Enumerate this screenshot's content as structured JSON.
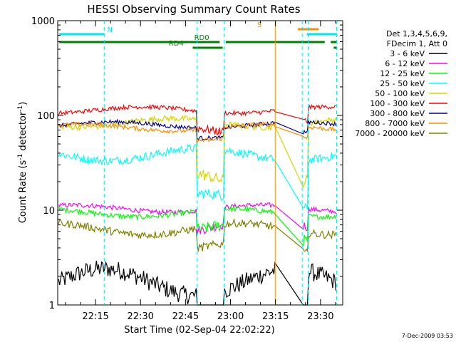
{
  "chart_data": {
    "type": "line",
    "title": "HESSI Observing Summary Count Rates",
    "xlabel": "Start Time (02-Sep-04 22:02:22)",
    "ylabel_main": "Count Rate (s",
    "ylabel_sup1": "-1",
    "ylabel_mid": " detector",
    "ylabel_sup2": "-1",
    "ylabel_end": ")",
    "yscale": "log",
    "ylim": [
      1,
      1000
    ],
    "xlim_minutes": [
      0,
      95
    ],
    "xtick_labels": [
      "22:15",
      "22:30",
      "22:45",
      "23:00",
      "23:15",
      "23:30"
    ],
    "xtick_minutes": [
      12.6,
      27.6,
      42.6,
      57.6,
      72.6,
      87.6
    ],
    "ytick_labels": [
      "1",
      "10",
      "100",
      "1000"
    ],
    "ytick_values": [
      1,
      10,
      100,
      1000
    ],
    "grid": false,
    "legend_position": "right",
    "legend_header": [
      "Det 1,3,4,5,6,9,",
      "FDecim 1, Att 0"
    ],
    "footer": "7-Dec-2009 03:53",
    "flags": [
      {
        "label": "N",
        "color": "#00e5ee",
        "segments": [
          [
            0.5,
            15.5
          ],
          [
            83,
            93
          ]
        ]
      },
      {
        "label": "S",
        "color": "#ff8c00",
        "segments": [
          [
            80,
            87
          ]
        ]
      },
      {
        "label": "RD0",
        "color": "#008000",
        "segments": [
          [
            0.5,
            54
          ],
          [
            56,
            89
          ],
          [
            91,
            93
          ]
        ]
      },
      {
        "label": "RD4",
        "color": "#008000",
        "segments": [
          [
            45,
            55
          ],
          [
            92,
            93
          ]
        ]
      }
    ],
    "night_markers_minutes": [
      15.5,
      46.5,
      55.5,
      81.5,
      83.5,
      93
    ],
    "series": [
      {
        "name": "3 - 6 keV",
        "color": "#000000",
        "values_day": [
          1,
          3
        ],
        "values_night": [
          1,
          1
        ]
      },
      {
        "name": "6 - 12 keV",
        "color": "#ff00ff",
        "values_day": [
          9,
          12
        ],
        "values_night": [
          5,
          9
        ]
      },
      {
        "name": "12 - 25 keV",
        "color": "#00ff00",
        "values_day": [
          8,
          11
        ],
        "values_night": [
          4,
          8
        ]
      },
      {
        "name": "25 - 50 keV",
        "color": "#00ffff",
        "values_day": [
          30,
          50
        ],
        "values_night": [
          9,
          17
        ]
      },
      {
        "name": "50 - 100 keV",
        "color": "#d4d400",
        "values_day": [
          70,
          100
        ],
        "values_night": [
          15,
          30
        ]
      },
      {
        "name": "100 - 300 keV",
        "color": "#ff0000",
        "values_day": [
          100,
          130
        ],
        "values_night": [
          60,
          100
        ]
      },
      {
        "name": "300 - 800 keV",
        "color": "#00008b",
        "values_day": [
          70,
          90
        ],
        "values_night": [
          55,
          70
        ]
      },
      {
        "name": "800 - 7000 keV",
        "color": "#ff8c00",
        "values_day": [
          65,
          85
        ],
        "values_night": [
          50,
          65
        ]
      },
      {
        "name": "7000 - 20000 keV",
        "color": "#808000",
        "values_day": [
          5,
          8
        ],
        "values_night": [
          3,
          5
        ]
      }
    ]
  }
}
